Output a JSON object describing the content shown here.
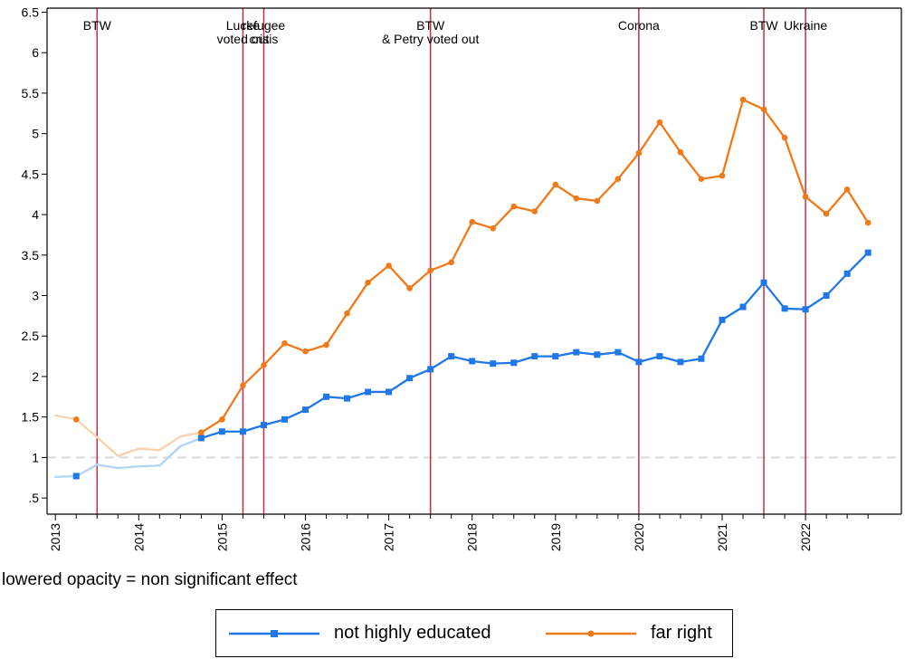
{
  "chart_data": {
    "type": "line",
    "xlim": [
      2012.9,
      2023.15
    ],
    "ylim": [
      0.3,
      6.55
    ],
    "ylabel": "",
    "xlabel": "",
    "y_ticks": [
      {
        "v": 0.5,
        "label": ".5"
      },
      {
        "v": 1,
        "label": "1"
      },
      {
        "v": 1.5,
        "label": "1.5"
      },
      {
        "v": 2,
        "label": "2"
      },
      {
        "v": 2.5,
        "label": "2.5"
      },
      {
        "v": 3,
        "label": "3"
      },
      {
        "v": 3.5,
        "label": "3.5"
      },
      {
        "v": 4,
        "label": "4"
      },
      {
        "v": 4.5,
        "label": "4.5"
      },
      {
        "v": 5,
        "label": "5"
      },
      {
        "v": 5.5,
        "label": "5.5"
      },
      {
        "v": 6,
        "label": "6"
      },
      {
        "v": 6.5,
        "label": "6.5"
      }
    ],
    "x_ticks": [
      {
        "v": 2013,
        "label": "2013"
      },
      {
        "v": 2014,
        "label": "2014"
      },
      {
        "v": 2015,
        "label": "2015"
      },
      {
        "v": 2016,
        "label": "2016"
      },
      {
        "v": 2017,
        "label": "2017"
      },
      {
        "v": 2018,
        "label": "2018"
      },
      {
        "v": 2019,
        "label": "2019"
      },
      {
        "v": 2020,
        "label": "2020"
      },
      {
        "v": 2021,
        "label": "2021"
      },
      {
        "v": 2022,
        "label": "2022"
      }
    ],
    "minor_x_ticks": [
      2013.25,
      2013.5,
      2013.75,
      2014.25,
      2014.5,
      2014.75,
      2015.25,
      2015.5,
      2015.75,
      2016.25,
      2016.5,
      2016.75,
      2017.25,
      2017.5,
      2017.75,
      2018.25,
      2018.5,
      2018.75,
      2019.25,
      2019.5,
      2019.75,
      2020.25,
      2020.5,
      2020.75,
      2021.25,
      2021.5,
      2021.75,
      2022.25,
      2022.5,
      2022.75
    ],
    "reference_line": {
      "y": 1,
      "color": "#d9d9d9"
    },
    "events": [
      {
        "x": 2013.5,
        "lines": [
          "BTW"
        ]
      },
      {
        "x": 2015.25,
        "lines": [
          "Lucke",
          "voted out"
        ]
      },
      {
        "x": 2015.5,
        "lines": [
          "refugee",
          "crisis"
        ]
      },
      {
        "x": 2017.5,
        "lines": [
          "BTW",
          "& Petry voted out"
        ]
      },
      {
        "x": 2020.0,
        "lines": [
          "Corona"
        ]
      },
      {
        "x": 2021.5,
        "lines": [
          "BTW"
        ]
      },
      {
        "x": 2022.0,
        "lines": [
          "Ukraine"
        ]
      }
    ],
    "event_color": "#c0304a",
    "series": [
      {
        "name": "not highly educated",
        "color": "#1f77e8",
        "light_color": "#b3d4f5",
        "marker": "square",
        "x": [
          2013.0,
          2013.25,
          2013.5,
          2013.75,
          2014.0,
          2014.25,
          2014.5,
          2014.75,
          2015.0,
          2015.25,
          2015.5,
          2015.75,
          2016.0,
          2016.25,
          2016.5,
          2016.75,
          2017.0,
          2017.25,
          2017.5,
          2017.75,
          2018.0,
          2018.25,
          2018.5,
          2018.75,
          2019.0,
          2019.25,
          2019.5,
          2019.75,
          2020.0,
          2020.25,
          2020.5,
          2020.75,
          2021.0,
          2021.25,
          2021.5,
          2021.75,
          2022.0,
          2022.25,
          2022.5,
          2022.75
        ],
        "values": [
          0.76,
          0.77,
          0.91,
          0.87,
          0.89,
          0.9,
          1.14,
          1.24,
          1.32,
          1.32,
          1.4,
          1.47,
          1.59,
          1.75,
          1.73,
          1.81,
          1.81,
          1.98,
          2.09,
          2.25,
          2.19,
          2.16,
          2.17,
          2.25,
          2.25,
          2.3,
          2.27,
          2.3,
          2.18,
          2.25,
          2.18,
          2.22,
          2.7,
          2.86,
          3.16,
          2.84,
          2.83,
          3.0,
          3.27,
          3.53
        ],
        "significant": [
          false,
          true,
          false,
          false,
          false,
          false,
          false,
          true,
          true,
          true,
          true,
          true,
          true,
          true,
          true,
          true,
          true,
          true,
          true,
          true,
          true,
          true,
          true,
          true,
          true,
          true,
          true,
          true,
          true,
          true,
          true,
          true,
          true,
          true,
          true,
          true,
          true,
          true,
          true,
          true
        ]
      },
      {
        "name": "far right",
        "color": "#f07a1a",
        "light_color": "#f9d2ac",
        "marker": "circle",
        "x": [
          2013.0,
          2013.25,
          2013.5,
          2013.75,
          2014.0,
          2014.25,
          2014.5,
          2014.75,
          2015.0,
          2015.25,
          2015.5,
          2015.75,
          2016.0,
          2016.25,
          2016.5,
          2016.75,
          2017.0,
          2017.25,
          2017.5,
          2017.75,
          2018.0,
          2018.25,
          2018.5,
          2018.75,
          2019.0,
          2019.25,
          2019.5,
          2019.75,
          2020.0,
          2020.25,
          2020.5,
          2020.75,
          2021.0,
          2021.25,
          2021.5,
          2021.75,
          2022.0,
          2022.25,
          2022.5,
          2022.75
        ],
        "values": [
          1.52,
          1.47,
          1.25,
          1.02,
          1.11,
          1.09,
          1.26,
          1.31,
          1.47,
          1.89,
          2.14,
          2.41,
          2.31,
          2.39,
          2.78,
          3.16,
          3.37,
          3.09,
          3.31,
          3.41,
          3.91,
          3.83,
          4.1,
          4.04,
          4.37,
          4.2,
          4.17,
          4.44,
          4.76,
          5.14,
          4.77,
          4.44,
          4.48,
          5.42,
          5.3,
          4.95,
          4.22,
          4.01,
          4.31,
          3.9
        ],
        "significant": [
          false,
          true,
          false,
          false,
          false,
          false,
          false,
          true,
          true,
          true,
          true,
          true,
          true,
          true,
          true,
          true,
          true,
          true,
          true,
          true,
          true,
          true,
          true,
          true,
          true,
          true,
          true,
          true,
          true,
          true,
          true,
          true,
          true,
          true,
          true,
          true,
          true,
          true,
          true,
          true
        ]
      }
    ]
  },
  "note": "lowered opacity = non significant effect",
  "legend": [
    {
      "label": "not highly educated",
      "color": "#1f77e8",
      "marker": "square"
    },
    {
      "label": "far right",
      "color": "#f07a1a",
      "marker": "circle"
    }
  ]
}
